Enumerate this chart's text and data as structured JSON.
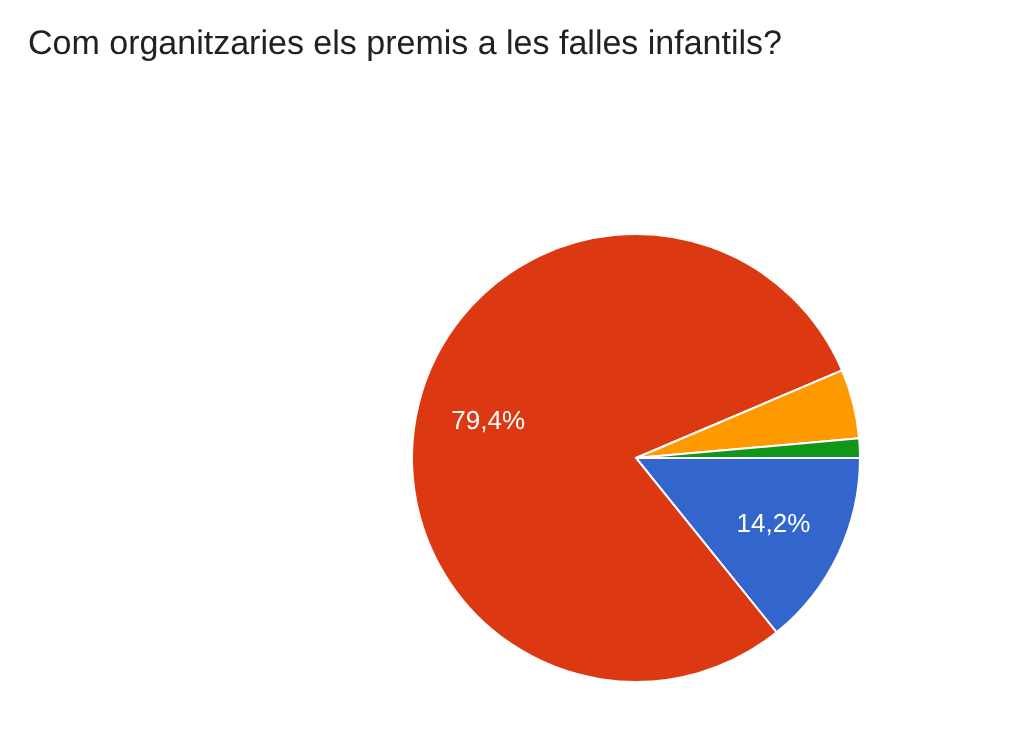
{
  "chart_data": {
    "type": "pie",
    "title": "Com organitzaries els premis a les falles infantils?",
    "categories": [
      null,
      null,
      null,
      null
    ],
    "values": [
      14.2,
      79.4,
      5.0,
      1.4
    ],
    "colors": [
      "#3366cc",
      "#dc3912",
      "#ff9900",
      "#109618"
    ],
    "value_labels": [
      "14,2%",
      "79,4%",
      null,
      null
    ]
  }
}
